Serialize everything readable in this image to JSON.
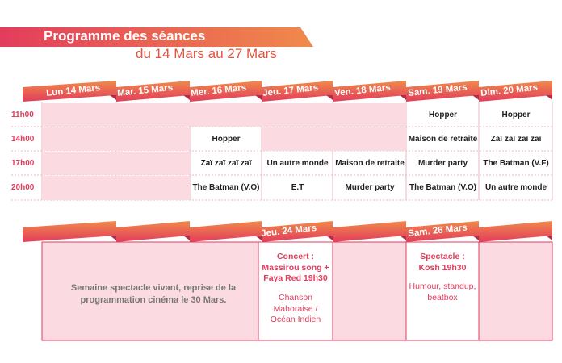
{
  "header": {
    "title": "Programme des séances",
    "subtitle": "du 14 Mars au 27 Mars"
  },
  "week1": {
    "days": [
      "Lun 14 Mars",
      "Mar. 15 Mars",
      "Mer. 16 Mars",
      "Jeu. 17 Mars",
      "Ven. 18 Mars",
      "Sam. 19 Mars",
      "Dim. 20 Mars"
    ],
    "times": [
      "11h00",
      "14h00",
      "17h00",
      "20h00"
    ],
    "cells": [
      [
        "",
        "",
        "",
        "",
        "",
        "Hopper",
        "Hopper"
      ],
      [
        "",
        "",
        "Hopper",
        "",
        "",
        "Maison de retraite",
        "Zaï zaï zaï zaï"
      ],
      [
        "",
        "",
        "Zaï zaï zaï zaï",
        "Un autre monde",
        "Maison de retraite",
        "Murder party",
        "The Batman (V.F)"
      ],
      [
        "",
        "",
        "The Batman (V.O)",
        "E.T",
        "Murder party",
        "The Batman (V.O)",
        "Un autre monde"
      ]
    ]
  },
  "week2": {
    "day_thu": "Jeu. 24 Mars",
    "day_sat": "Sam. 26 Mars",
    "note": "Semaine spectacle vivant, reprise de la programmation cinéma le 30 Mars.",
    "thu_event": {
      "type": "Concert :",
      "name": "Massirou song + Faya Red 19h30",
      "desc": "Chanson Mahoraise / Océan Indien"
    },
    "sat_event": {
      "type": "Spectacle :",
      "name": "Kosh 19h30",
      "desc": "Humour, standup, beatbox"
    }
  },
  "colors": {
    "accent_red": "#e23d5c",
    "accent_orange": "#f08a4b",
    "cell_pink": "#fbdbe1"
  }
}
